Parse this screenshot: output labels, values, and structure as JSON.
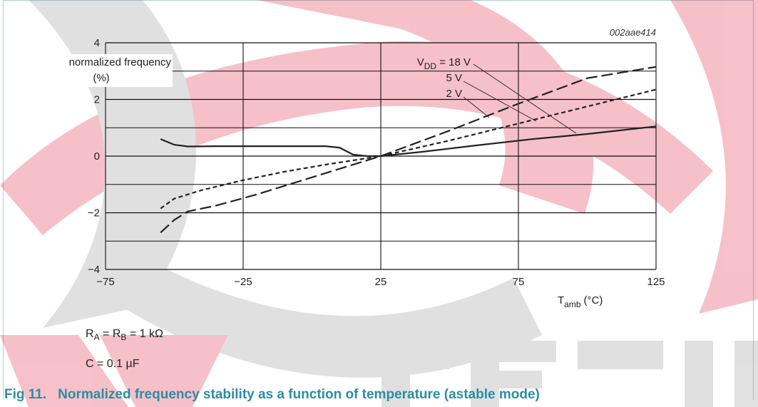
{
  "chart_data": {
    "type": "line",
    "code": "002aae414",
    "xlabel": {
      "main": "T",
      "sub": "amb",
      "unit": "(°C)"
    },
    "ylabel": [
      "normalized frequency",
      "(%)"
    ],
    "xlim": [
      -75,
      125
    ],
    "ylim": [
      -4,
      4
    ],
    "xticks": [
      -75,
      -25,
      25,
      75,
      125
    ],
    "xtick_labels": [
      "−75",
      "−25",
      "25",
      "75",
      "125"
    ],
    "yticks": [
      4,
      2,
      0,
      -2,
      -4
    ],
    "ytick_labels": [
      "4",
      "2",
      "0",
      "−2",
      "−4"
    ],
    "grid": true,
    "series": [
      {
        "name": "VDD = 18 V",
        "label_main": "V",
        "label_sub": "DD",
        "label_rest": " = 18 V",
        "style": "solid",
        "color": "#222222",
        "points": [
          [
            -55,
            0.6
          ],
          [
            -50,
            0.4
          ],
          [
            -45,
            0.34
          ],
          [
            -35,
            0.35
          ],
          [
            -20,
            0.35
          ],
          [
            -5,
            0.35
          ],
          [
            5,
            0.35
          ],
          [
            10,
            0.3
          ],
          [
            15,
            0.05
          ],
          [
            20,
            0.0
          ],
          [
            25,
            0.0
          ],
          [
            40,
            0.15
          ],
          [
            60,
            0.38
          ],
          [
            80,
            0.6
          ],
          [
            100,
            0.78
          ],
          [
            125,
            1.05
          ]
        ]
      },
      {
        "name": "5 V",
        "label_rest": "5 V",
        "style": "shortdash",
        "color": "#222222",
        "points": [
          [
            -55,
            -1.85
          ],
          [
            -50,
            -1.5
          ],
          [
            -40,
            -1.2
          ],
          [
            -25,
            -0.85
          ],
          [
            -10,
            -0.55
          ],
          [
            5,
            -0.3
          ],
          [
            25,
            0.0
          ],
          [
            50,
            0.55
          ],
          [
            75,
            1.15
          ],
          [
            100,
            1.75
          ],
          [
            125,
            2.35
          ]
        ]
      },
      {
        "name": "2 V",
        "label_rest": "2 V",
        "style": "longdash",
        "color": "#222222",
        "points": [
          [
            -55,
            -2.7
          ],
          [
            -50,
            -2.25
          ],
          [
            -45,
            -1.95
          ],
          [
            -35,
            -1.75
          ],
          [
            -20,
            -1.35
          ],
          [
            0,
            -0.75
          ],
          [
            25,
            0.0
          ],
          [
            50,
            0.9
          ],
          [
            75,
            1.85
          ],
          [
            100,
            2.75
          ],
          [
            125,
            3.15
          ]
        ]
      }
    ]
  },
  "notes": {
    "line1": {
      "ra": "R",
      "ra_sub": "A",
      "mid": " = R",
      "rb_sub": "B",
      "rest": " = 1 kΩ"
    },
    "line2": "C = 0.1 µF"
  },
  "caption": {
    "number": "Fig 11.",
    "text": "Normalized frequency stability as a function of temperature (astable mode)"
  },
  "colors": {
    "caption": "#2a8ea4",
    "watermark_red": "#e4324f",
    "watermark_gray": "#9a9a9a"
  }
}
